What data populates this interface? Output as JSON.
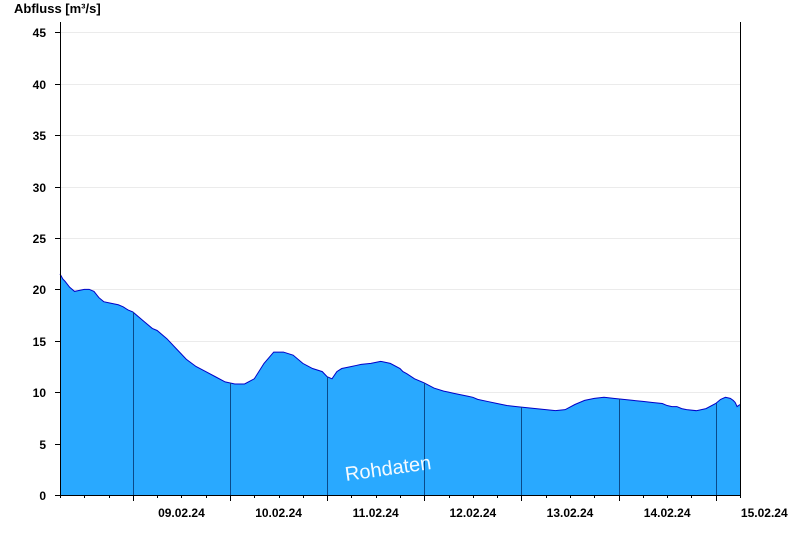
{
  "chart_data": {
    "type": "area",
    "ylabel": "Abfluss [m³/s]",
    "watermark": "Rohdaten",
    "ylim": [
      0,
      46
    ],
    "yticks": [
      0,
      5,
      10,
      15,
      20,
      25,
      30,
      35,
      40,
      45
    ],
    "xlim_days": [
      8.25,
      15.25
    ],
    "xtick_labels": [
      "09.02.24",
      "10.02.24",
      "11.02.24",
      "12.02.24",
      "13.02.24",
      "14.02.24",
      "15.02.24"
    ],
    "grid": true,
    "fill_color": "#29A9FF",
    "line_color": "#0000C8",
    "series": [
      {
        "x_days": [
          8.25,
          8.28,
          8.3,
          8.35,
          8.4,
          8.45,
          8.5,
          8.55,
          8.6,
          8.65,
          8.7,
          8.75,
          8.8,
          8.85,
          8.9,
          8.95,
          9.0,
          9.1,
          9.2,
          9.25,
          9.35,
          9.45,
          9.55,
          9.65,
          9.75,
          9.85,
          9.95,
          10.05,
          10.15,
          10.25,
          10.35,
          10.45,
          10.55,
          10.65,
          10.75,
          10.85,
          10.95,
          11.0,
          11.05,
          11.1,
          11.15,
          11.2,
          11.25,
          11.3,
          11.35,
          11.45,
          11.55,
          11.65,
          11.75,
          11.78,
          11.82,
          11.9,
          12.0,
          12.1,
          12.2,
          12.25,
          12.3,
          12.35,
          12.4,
          12.45,
          12.5,
          12.55,
          12.65,
          12.75,
          12.85,
          12.95,
          13.05,
          13.15,
          13.25,
          13.35,
          13.45,
          13.55,
          13.65,
          13.75,
          13.85,
          13.95,
          14.05,
          14.15,
          14.25,
          14.35,
          14.45,
          14.5,
          14.55,
          14.6,
          14.65,
          14.7,
          14.8,
          14.9,
          15.0,
          15.05,
          15.1,
          15.15,
          15.18,
          15.2,
          15.22,
          15.25
        ],
        "y": [
          21.5,
          21.0,
          20.8,
          20.2,
          19.8,
          19.9,
          20.0,
          20.0,
          19.8,
          19.2,
          18.8,
          18.7,
          18.6,
          18.5,
          18.3,
          18.0,
          17.8,
          17.0,
          16.2,
          16.0,
          15.2,
          14.2,
          13.2,
          12.5,
          12.0,
          11.5,
          11.0,
          10.8,
          10.8,
          11.3,
          12.8,
          13.9,
          13.9,
          13.6,
          12.8,
          12.3,
          12.0,
          11.5,
          11.3,
          12.0,
          12.3,
          12.4,
          12.5,
          12.6,
          12.7,
          12.8,
          13.0,
          12.8,
          12.3,
          12.0,
          11.8,
          11.3,
          10.9,
          10.4,
          10.1,
          10.0,
          9.9,
          9.8,
          9.7,
          9.6,
          9.5,
          9.3,
          9.1,
          8.9,
          8.7,
          8.6,
          8.5,
          8.4,
          8.3,
          8.2,
          8.3,
          8.8,
          9.2,
          9.4,
          9.5,
          9.4,
          9.3,
          9.2,
          9.1,
          9.0,
          8.9,
          8.7,
          8.6,
          8.6,
          8.4,
          8.3,
          8.2,
          8.4,
          8.9,
          9.3,
          9.5,
          9.4,
          9.2,
          9.0,
          8.6,
          8.8
        ]
      }
    ]
  }
}
